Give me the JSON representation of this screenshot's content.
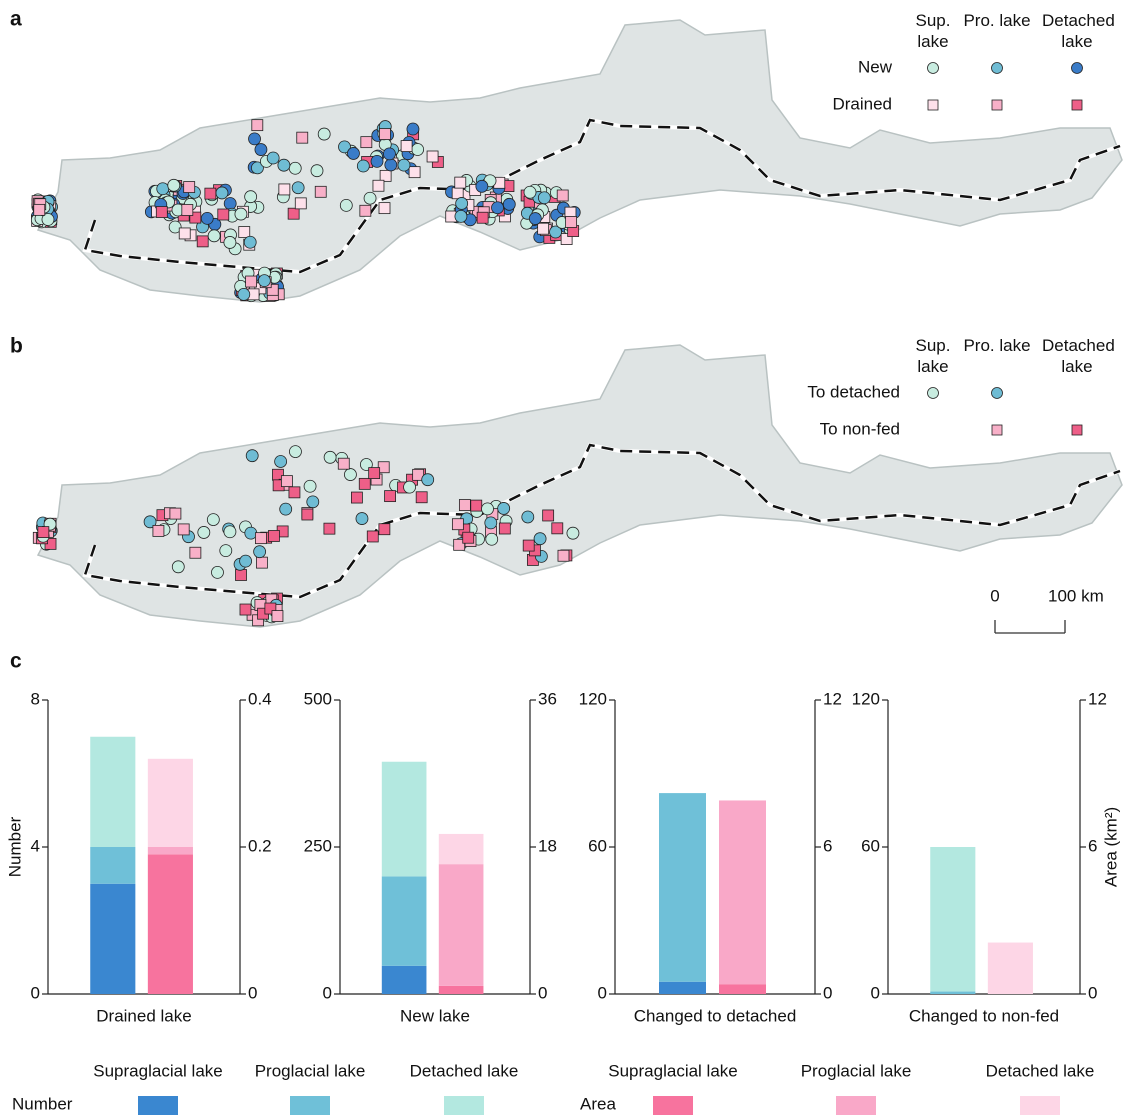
{
  "map_a": {
    "label": "a",
    "columns": [
      "Sup. lake",
      "Pro. lake",
      "Detached lake"
    ],
    "rows": [
      {
        "label": "New",
        "shape": "circle",
        "colors": [
          "#c8ece0",
          "#6fbcd4",
          "#3a7cc8"
        ]
      },
      {
        "label": "Drained",
        "shape": "square",
        "colors": [
          "#fde0ea",
          "#f8b0c8",
          "#ee5f88"
        ]
      }
    ]
  },
  "map_b": {
    "label": "b",
    "columns": [
      "Sup. lake",
      "Pro. lake",
      "Detached lake"
    ],
    "rows": [
      {
        "label": "To detached",
        "shape": "circle",
        "colors": [
          "#c8ece0",
          "#6fbcd4",
          null
        ]
      },
      {
        "label": "To non-fed",
        "shape": "square",
        "colors": [
          null,
          "#f8b0c8",
          "#ee5f88"
        ]
      }
    ],
    "scale_labels": [
      "0",
      "100 km"
    ]
  },
  "panel_c_label": "c",
  "chart_data": [
    {
      "type": "bar",
      "category": "Drained lake",
      "ylabel": "Number",
      "ylim": [
        0,
        8
      ],
      "yticks": [
        0,
        4,
        8
      ],
      "y2lim": [
        0,
        0.4
      ],
      "y2ticks": [
        0,
        0.2,
        0.4
      ],
      "series": [
        {
          "name": "Supraglacial lake",
          "color": "#3a87d0",
          "values": [
            3
          ]
        },
        {
          "name": "Proglacial lake",
          "color": "#6fc0d8",
          "values": [
            1
          ]
        },
        {
          "name": "Detached lake",
          "color": "#b3e8e0",
          "values": [
            3
          ]
        },
        {
          "name": "Supraglacial lake",
          "color": "#f7739e",
          "values": [
            0.19
          ],
          "axis": "y2"
        },
        {
          "name": "Proglacial lake",
          "color": "#f9a8c8",
          "values": [
            0.01
          ],
          "axis": "y2"
        },
        {
          "name": "Detached lake",
          "color": "#fdd6e6",
          "values": [
            0.12
          ],
          "axis": "y2"
        }
      ]
    },
    {
      "type": "bar",
      "category": "New lake",
      "ylim": [
        0,
        500
      ],
      "yticks": [
        0,
        250,
        500
      ],
      "y2lim": [
        0,
        36
      ],
      "y2ticks": [
        0,
        18,
        36
      ],
      "series": [
        {
          "name": "Supraglacial lake",
          "color": "#3a87d0",
          "values": [
            48
          ]
        },
        {
          "name": "Proglacial lake",
          "color": "#6fc0d8",
          "values": [
            152
          ]
        },
        {
          "name": "Detached lake",
          "color": "#b3e8e0",
          "values": [
            195
          ]
        },
        {
          "name": "Supraglacial lake",
          "color": "#f7739e",
          "values": [
            1.0
          ],
          "axis": "y2"
        },
        {
          "name": "Proglacial lake",
          "color": "#f9a8c8",
          "values": [
            14.9
          ],
          "axis": "y2"
        },
        {
          "name": "Detached lake",
          "color": "#fdd6e6",
          "values": [
            3.7
          ],
          "axis": "y2"
        }
      ]
    },
    {
      "type": "bar",
      "category": "Changed to detached",
      "ylim": [
        0,
        120
      ],
      "yticks": [
        0,
        60,
        120
      ],
      "y2lim": [
        0,
        12
      ],
      "y2ticks": [
        0,
        6,
        12
      ],
      "series": [
        {
          "name": "Supraglacial lake",
          "color": "#3a87d0",
          "values": [
            5
          ]
        },
        {
          "name": "Proglacial lake",
          "color": "#6fc0d8",
          "values": [
            77
          ]
        },
        {
          "name": "Detached lake",
          "color": "#b3e8e0",
          "values": [
            0
          ]
        },
        {
          "name": "Supraglacial lake",
          "color": "#f7739e",
          "values": [
            0.4
          ],
          "axis": "y2"
        },
        {
          "name": "Proglacial lake",
          "color": "#f9a8c8",
          "values": [
            7.5
          ],
          "axis": "y2"
        },
        {
          "name": "Detached lake",
          "color": "#fdd6e6",
          "values": [
            0
          ],
          "axis": "y2"
        }
      ]
    },
    {
      "type": "bar",
      "category": "Changed to non-fed",
      "y2label": "Area (km²)",
      "ylim": [
        0,
        120
      ],
      "yticks": [
        0,
        60,
        120
      ],
      "y2lim": [
        0,
        12
      ],
      "y2ticks": [
        0,
        6,
        12
      ],
      "series": [
        {
          "name": "Supraglacial lake",
          "color": "#3a87d0",
          "values": [
            0
          ]
        },
        {
          "name": "Proglacial lake",
          "color": "#6fc0d8",
          "values": [
            1
          ]
        },
        {
          "name": "Detached lake",
          "color": "#b3e8e0",
          "values": [
            59
          ]
        },
        {
          "name": "Supraglacial lake",
          "color": "#f7739e",
          "values": [
            0
          ],
          "axis": "y2"
        },
        {
          "name": "Proglacial lake",
          "color": "#f9a8c8",
          "values": [
            0
          ],
          "axis": "y2"
        },
        {
          "name": "Detached lake",
          "color": "#fdd6e6",
          "values": [
            2.1
          ],
          "axis": "y2"
        }
      ]
    }
  ],
  "bar_legend": [
    {
      "label": "Number",
      "items": [
        "Supraglacial lake",
        "Proglacial lake",
        "Detached lake"
      ],
      "colors": [
        "#3a87d0",
        "#6fc0d8",
        "#b3e8e0"
      ]
    },
    {
      "label": "Area",
      "items": [
        "Supraglacial lake",
        "Proglacial lake",
        "Detached lake"
      ],
      "colors": [
        "#f7739e",
        "#f9a8c8",
        "#fdd6e6"
      ]
    }
  ]
}
